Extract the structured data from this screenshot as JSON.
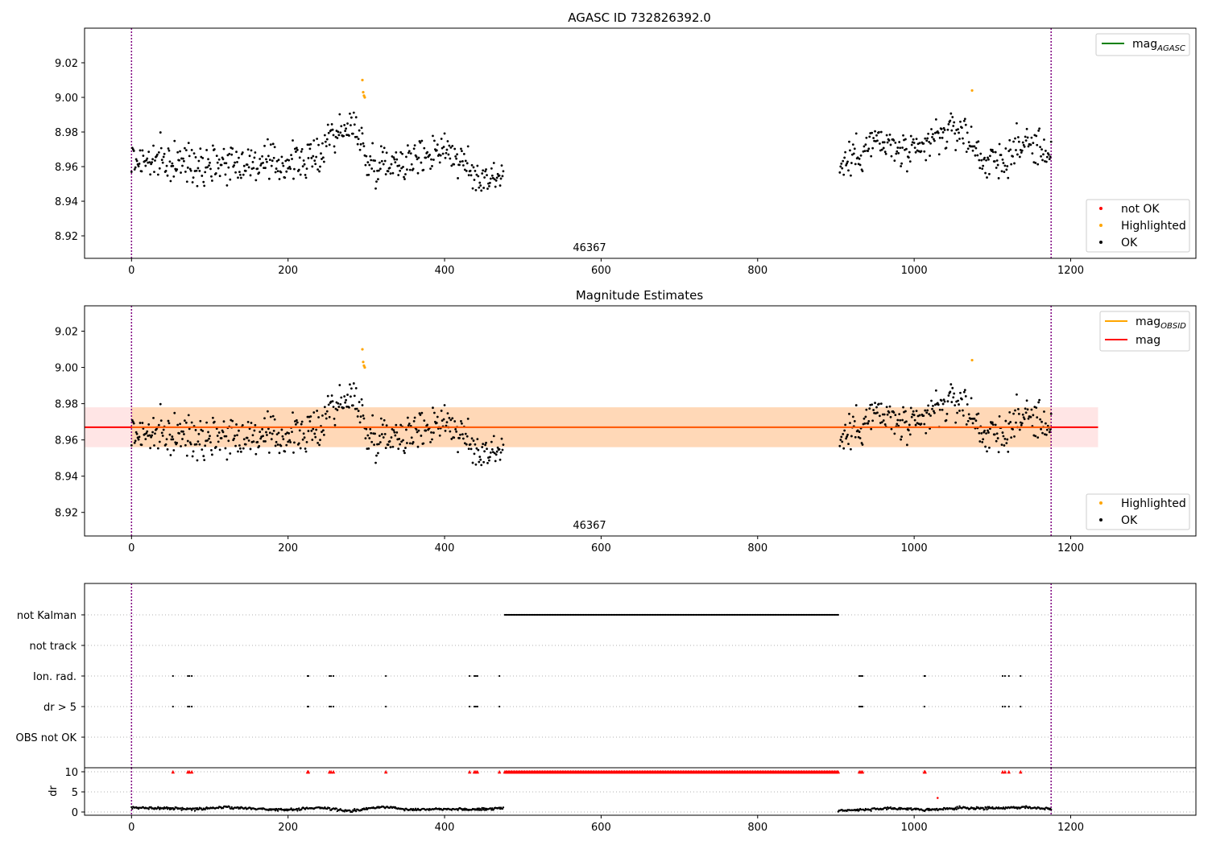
{
  "chart_data": [
    {
      "type": "scatter",
      "title": "AGASC ID 732826392.0",
      "annotation": "46367",
      "xlim": [
        -60,
        1360
      ],
      "ylim": [
        8.907,
        9.04
      ],
      "xticks": [
        0,
        200,
        400,
        600,
        800,
        1000,
        1200
      ],
      "yticks": [
        8.92,
        8.94,
        8.96,
        8.98,
        9.0,
        9.02
      ],
      "vlines": [
        0,
        1175
      ],
      "legend_top": {
        "position": "top-right",
        "entries": [
          {
            "label": "mag",
            "subscript": "AGASC",
            "color": "#008000",
            "kind": "line"
          }
        ]
      },
      "legend_bottom": {
        "position": "lower-right",
        "entries": [
          {
            "label": "not OK",
            "color": "#ff0000"
          },
          {
            "label": "Highlighted",
            "color": "#ffa500"
          },
          {
            "label": "OK",
            "color": "#000000"
          }
        ]
      },
      "ok_segments": [
        {
          "x_start": 0,
          "x_end": 475,
          "anchors_x": [
            0,
            60,
            120,
            180,
            240,
            250,
            290,
            300,
            360,
            400,
            440,
            475
          ],
          "anchors_y": [
            8.964,
            8.962,
            8.963,
            8.961,
            8.965,
            8.978,
            8.983,
            8.962,
            8.964,
            8.972,
            8.954,
            8.955
          ]
        },
        {
          "x_start": 905,
          "x_end": 1175,
          "anchors_x": [
            905,
            950,
            1000,
            1030,
            1060,
            1090,
            1110,
            1140,
            1175
          ],
          "anchors_y": [
            8.96,
            8.975,
            8.966,
            8.978,
            8.982,
            8.963,
            8.962,
            8.974,
            8.968
          ]
        }
      ],
      "ok_spread": 0.006,
      "highlighted": {
        "x": [
          295,
          296,
          297,
          298,
          1074
        ],
        "y": [
          9.01,
          9.003,
          9.001,
          9.0,
          9.004
        ]
      },
      "not_ok": {
        "x": [],
        "y": []
      }
    },
    {
      "type": "scatter",
      "title": "Magnitude Estimates",
      "annotation": "46367",
      "xlim": [
        -60,
        1360
      ],
      "ylim": [
        8.907,
        9.034
      ],
      "xticks": [
        0,
        200,
        400,
        600,
        800,
        1000,
        1200
      ],
      "yticks": [
        8.92,
        8.94,
        8.96,
        8.98,
        9.0,
        9.02
      ],
      "vlines": [
        0,
        1175
      ],
      "mag": 8.967,
      "mag_band": [
        8.956,
        8.978
      ],
      "mag_line_x": [
        -60,
        1235
      ],
      "band_x": [
        -60,
        1235
      ],
      "obsid_band_x": [
        0,
        1175
      ],
      "legend_top": {
        "position": "top-right",
        "entries": [
          {
            "label": "mag",
            "subscript": "OBSID",
            "color": "#ffa500",
            "kind": "line"
          },
          {
            "label": "mag",
            "subscript": "",
            "color": "#ff0000",
            "kind": "line"
          }
        ]
      },
      "legend_bottom": {
        "position": "lower-right",
        "entries": [
          {
            "label": "Highlighted",
            "color": "#ffa500"
          },
          {
            "label": "OK",
            "color": "#000000"
          }
        ]
      }
    },
    {
      "type": "scatter",
      "title": "",
      "xlim": [
        -60,
        1360
      ],
      "categories": [
        "not Kalman",
        "not track",
        "Ion. rad.",
        "dr > 5",
        "OBS not OK"
      ],
      "vlines": [
        0,
        1175
      ],
      "flags": {
        "not Kalman": {
          "ranges": [
            [
              477,
              903
            ]
          ]
        },
        "not track": {
          "x": []
        },
        "Ion. rad.": {
          "x": [
            53,
            72,
            74,
            77,
            225,
            226,
            253,
            255,
            258,
            325,
            432,
            438,
            440,
            442,
            470,
            930,
            932,
            934,
            1013,
            1014,
            1113,
            1116,
            1121,
            1136
          ]
        },
        "dr > 5": {
          "x": [
            53,
            72,
            74,
            77,
            225,
            226,
            253,
            255,
            258,
            325,
            432,
            438,
            440,
            442,
            470,
            930,
            932,
            934,
            1013,
            1113,
            1116,
            1121,
            1136
          ]
        },
        "OBS not OK": {
          "x": []
        }
      }
    },
    {
      "type": "scatter",
      "title": "",
      "ylabel": "dr",
      "xlim": [
        -60,
        1360
      ],
      "ylim": [
        -0.8,
        11
      ],
      "xticks": [
        0,
        200,
        400,
        600,
        800,
        1000,
        1200
      ],
      "yticks": [
        0,
        5,
        10
      ],
      "vlines": [
        0,
        1175
      ],
      "red_at_10": {
        "x": [
          53,
          72,
          74,
          77,
          225,
          226,
          253,
          255,
          258,
          325,
          432,
          438,
          440,
          442,
          470,
          930,
          932,
          934,
          1013,
          1014,
          1113,
          1116,
          1121,
          1136
        ],
        "range": [
          477,
          903
        ]
      },
      "red_extra": {
        "x": [
          1030
        ],
        "y": [
          3.5
        ]
      },
      "black_segments": [
        {
          "x_start": 0,
          "x_end": 475,
          "anchors_x": [
            0,
            40,
            80,
            120,
            160,
            200,
            240,
            280,
            320,
            360,
            400,
            440,
            475
          ],
          "anchors_y": [
            1.0,
            1.0,
            0.7,
            1.2,
            0.8,
            0.5,
            1.1,
            0.2,
            1.3,
            0.6,
            0.8,
            0.6,
            1.0
          ]
        },
        {
          "x_start": 903,
          "x_end": 1175,
          "anchors_x": [
            903,
            940,
            980,
            1020,
            1060,
            1100,
            1140,
            1175
          ],
          "anchors_y": [
            0.4,
            0.6,
            0.9,
            0.5,
            1.0,
            0.9,
            1.2,
            0.8
          ]
        }
      ]
    }
  ]
}
